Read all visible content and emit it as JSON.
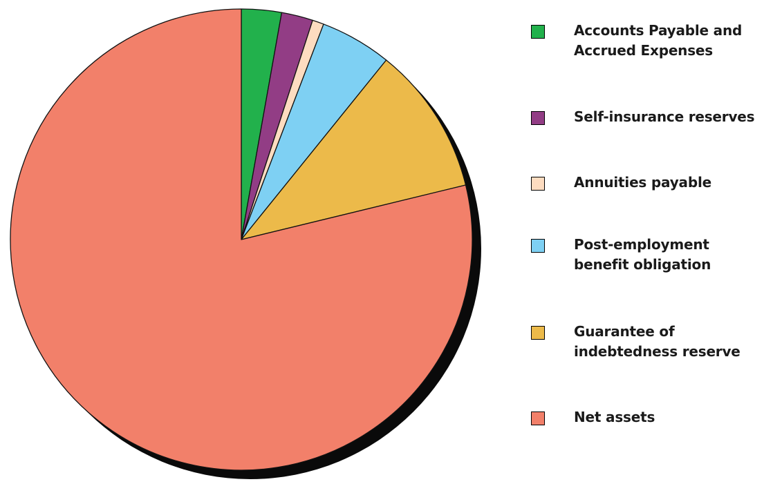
{
  "chart_data": {
    "type": "pie",
    "title": "",
    "start_angle_deg": 0,
    "direction": "clockwise",
    "series": [
      {
        "name": "Accounts Payable and Accrued Expenses",
        "value": 2.8,
        "color": "#22B14C"
      },
      {
        "name": "Self-insurance reserves",
        "value": 2.2,
        "color": "#923D85"
      },
      {
        "name": "Annuities payable",
        "value": 0.8,
        "color": "#FDDCC0"
      },
      {
        "name": "Post-employment benefit obligation",
        "value": 5.0,
        "color": "#7ED0F3"
      },
      {
        "name": "Guarantee of indebtedness reserve",
        "value": 10.4,
        "color": "#ECBA4A"
      },
      {
        "name": "Net assets",
        "value": 78.8,
        "color": "#F2806A"
      }
    ],
    "legend": {
      "position": "right",
      "labels": [
        [
          "Accounts Payable and",
          "Accrued Expenses"
        ],
        [
          "Self-insurance reserves"
        ],
        [
          "Annuities payable"
        ],
        [
          "Post-employment",
          "benefit obligation"
        ],
        [
          "Guarantee of",
          "indebtedness reserve"
        ],
        [
          "Net assets"
        ]
      ]
    },
    "shadow": true
  }
}
